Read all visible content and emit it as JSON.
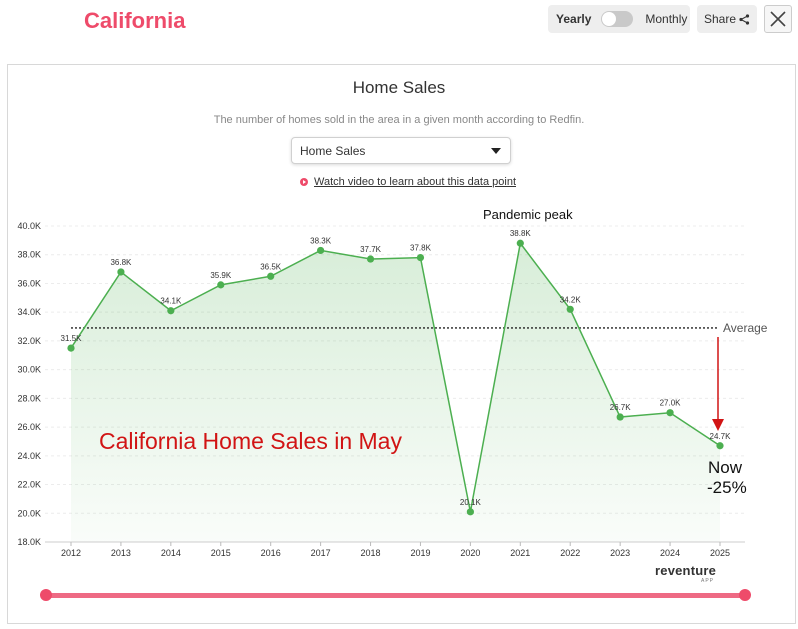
{
  "header": {
    "title": "California",
    "toggle": {
      "left_label": "Yearly",
      "right_label": "Monthly"
    },
    "share_label": "Share"
  },
  "panel": {
    "title": "Home Sales",
    "subtitle": "The number of homes sold in the area in a given month according to Redfin.",
    "dropdown_value": "Home Sales",
    "video_link": "Watch video to learn about this data point",
    "brand": "reventure",
    "brand_sub": "APP"
  },
  "annotations": {
    "overlay_title": "California Home Sales in May",
    "peak": "Pandemic peak",
    "now_line1": "Now",
    "now_line2": "-25%",
    "average_label": "Average"
  },
  "colors": {
    "brand": "#ee4b6a",
    "line": "#4caf50",
    "annotation": "#d11414"
  },
  "chart_data": {
    "type": "area",
    "title": "Home Sales",
    "x": [
      "2012",
      "2013",
      "2014",
      "2015",
      "2016",
      "2017",
      "2018",
      "2019",
      "2020",
      "2021",
      "2022",
      "2023",
      "2024",
      "2025"
    ],
    "values": [
      31.5,
      36.8,
      34.1,
      35.9,
      36.5,
      38.3,
      37.7,
      37.8,
      20.1,
      38.8,
      34.2,
      26.7,
      27.0,
      24.7
    ],
    "data_labels": [
      "31.5K",
      "36.8K",
      "34.1K",
      "35.9K",
      "36.5K",
      "38.3K",
      "37.7K",
      "37.8K",
      "20.1K",
      "38.8K",
      "34.2K",
      "26.7K",
      "27.0K",
      "24.7K"
    ],
    "y_ticks": [
      "18.0K",
      "20.0K",
      "22.0K",
      "24.0K",
      "26.0K",
      "28.0K",
      "30.0K",
      "32.0K",
      "34.0K",
      "36.0K",
      "38.0K",
      "40.0K"
    ],
    "ylim": [
      18,
      40
    ],
    "average": 32.9,
    "grid": true
  }
}
